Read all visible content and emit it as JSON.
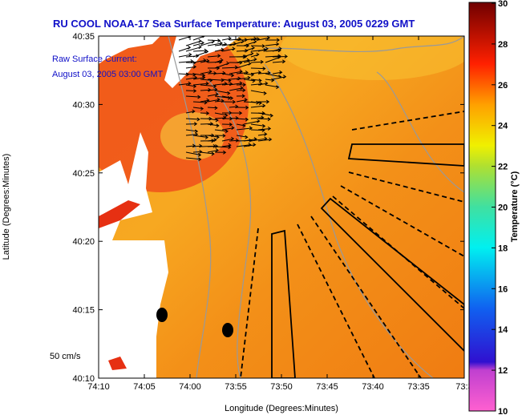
{
  "title": "RU COOL  NOAA-17  Sea Surface Temperature:  August 03, 2005 0229 GMT",
  "annotation": {
    "line1": "Raw Surface Current:",
    "line2": "August 03, 2005 03:00 GMT"
  },
  "scale_label": "50 cm/s",
  "chart_data": {
    "type": "heatmap",
    "title": "RU COOL  NOAA-17  Sea Surface Temperature:  August 03, 2005 0229 GMT",
    "xlabel": "Longitude (Degrees:Minutes)",
    "ylabel": "Latitude (Degrees:Minutes)",
    "x_ticks": [
      "74:10",
      "74:05",
      "74:00",
      "73:55",
      "73:50",
      "73:45",
      "73:40",
      "73:35",
      "73:3"
    ],
    "y_ticks": [
      "40:35",
      "40:30",
      "40:25",
      "40:20",
      "40:15",
      "40:10"
    ],
    "colorbar": {
      "label": "Temperature (°C)",
      "ticks": [
        "30",
        "28",
        "26",
        "24",
        "22",
        "20",
        "18",
        "16",
        "14",
        "12",
        "10"
      ],
      "range": [
        10,
        30
      ]
    },
    "colors": {
      "water": "#f59a1c",
      "title": "#1010c8"
    }
  }
}
